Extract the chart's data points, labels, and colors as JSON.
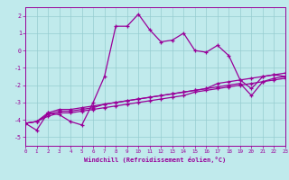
{
  "xlabel": "Windchill (Refroidissement éolien,°C)",
  "xlim": [
    0,
    23
  ],
  "ylim": [
    -5.5,
    2.5
  ],
  "yticks": [
    -5,
    -4,
    -3,
    -2,
    -1,
    0,
    1,
    2
  ],
  "xticks": [
    0,
    1,
    2,
    3,
    4,
    5,
    6,
    7,
    8,
    9,
    10,
    11,
    12,
    13,
    14,
    15,
    16,
    17,
    18,
    19,
    20,
    21,
    22,
    23
  ],
  "bg_color": "#c0eaec",
  "line_color": "#990099",
  "grid_color": "#96ccd0",
  "series1_x": [
    0,
    1,
    2,
    3,
    4,
    5,
    6,
    7,
    8,
    9,
    10,
    11,
    12,
    13,
    14,
    15,
    16,
    17,
    18,
    19,
    20,
    21,
    22,
    23
  ],
  "series1_y": [
    -4.2,
    -4.6,
    -3.6,
    -3.7,
    -4.1,
    -4.3,
    -3.0,
    -1.5,
    1.4,
    1.4,
    2.1,
    1.2,
    0.5,
    0.6,
    1.0,
    0.0,
    -0.1,
    0.3,
    -0.3,
    -1.7,
    -2.2,
    -1.5,
    -1.4,
    -1.5
  ],
  "series2_x": [
    0,
    1,
    2,
    3,
    4,
    5,
    6,
    7,
    8,
    9,
    10,
    11,
    12,
    13,
    14,
    15,
    16,
    17,
    18,
    19,
    20,
    21,
    22,
    23
  ],
  "series2_y": [
    -4.2,
    -4.1,
    -3.7,
    -3.5,
    -3.5,
    -3.4,
    -3.3,
    -3.1,
    -3.0,
    -2.9,
    -2.8,
    -2.7,
    -2.6,
    -2.5,
    -2.4,
    -2.3,
    -2.2,
    -2.1,
    -2.0,
    -1.9,
    -2.6,
    -1.8,
    -1.6,
    -1.5
  ],
  "series3_x": [
    0,
    1,
    2,
    3,
    4,
    5,
    6,
    7,
    8,
    9,
    10,
    11,
    12,
    13,
    14,
    15,
    16,
    17,
    18,
    19,
    20,
    21,
    22,
    23
  ],
  "series3_y": [
    -4.2,
    -4.1,
    -3.8,
    -3.6,
    -3.6,
    -3.5,
    -3.4,
    -3.3,
    -3.2,
    -3.1,
    -3.0,
    -2.9,
    -2.8,
    -2.7,
    -2.6,
    -2.4,
    -2.3,
    -2.2,
    -2.1,
    -2.0,
    -1.9,
    -1.8,
    -1.7,
    -1.6
  ],
  "series4_x": [
    0,
    1,
    2,
    3,
    4,
    5,
    6,
    7,
    8,
    9,
    10,
    11,
    12,
    13,
    14,
    15,
    16,
    17,
    18,
    19,
    20,
    21,
    22,
    23
  ],
  "series4_y": [
    -4.2,
    -4.1,
    -3.6,
    -3.4,
    -3.4,
    -3.3,
    -3.2,
    -3.1,
    -3.0,
    -2.9,
    -2.8,
    -2.7,
    -2.6,
    -2.5,
    -2.4,
    -2.3,
    -2.2,
    -1.9,
    -1.8,
    -1.7,
    -1.6,
    -1.5,
    -1.4,
    -1.3
  ]
}
